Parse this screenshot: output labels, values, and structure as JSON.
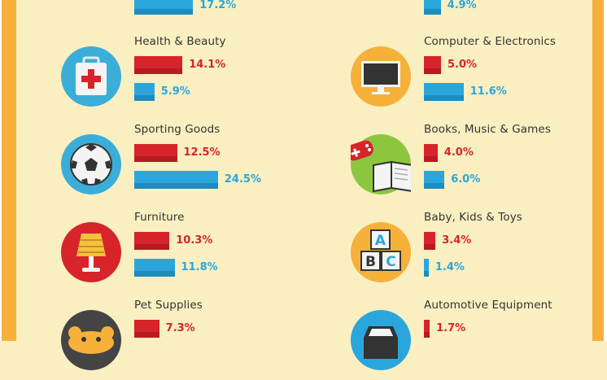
{
  "chart_data": {
    "type": "bar",
    "colors": {
      "series_a": "#d6242a",
      "series_b": "#2aa6dd"
    },
    "categories": [
      "",
      "",
      "Health & Beauty",
      "Computer & Electronics",
      "Sporting Goods",
      "Books, Music & Games",
      "Furniture",
      "Baby, Kids & Toys",
      "Pet Supplies",
      "Automotive Equipment"
    ],
    "icons": [
      "sunglasses-icon",
      "cart-icon",
      "first-aid-kit-icon",
      "computer-monitor-icon",
      "soccer-ball-icon",
      "gamepad-and-book-icon",
      "lamp-icon",
      "abc-blocks-icon",
      "dog-icon",
      "car-icon"
    ],
    "series": [
      {
        "values": [
          null,
          null,
          14.1,
          5.0,
          12.5,
          4.0,
          10.3,
          3.4,
          7.3,
          1.7
        ]
      },
      {
        "values": [
          17.2,
          4.9,
          5.9,
          11.6,
          24.5,
          6.0,
          11.8,
          1.4,
          null,
          null
        ]
      }
    ],
    "value_labels": [
      [
        "",
        "",
        "14.1%",
        "5.0%",
        "12.5%",
        "4.0%",
        "10.3%",
        "3.4%",
        "7.3%",
        "1.7%"
      ],
      [
        "17.2%",
        "4.9%",
        "5.9%",
        "11.6%",
        "24.5%",
        "6.0%",
        "11.8%",
        "1.4%",
        "",
        ""
      ]
    ]
  }
}
